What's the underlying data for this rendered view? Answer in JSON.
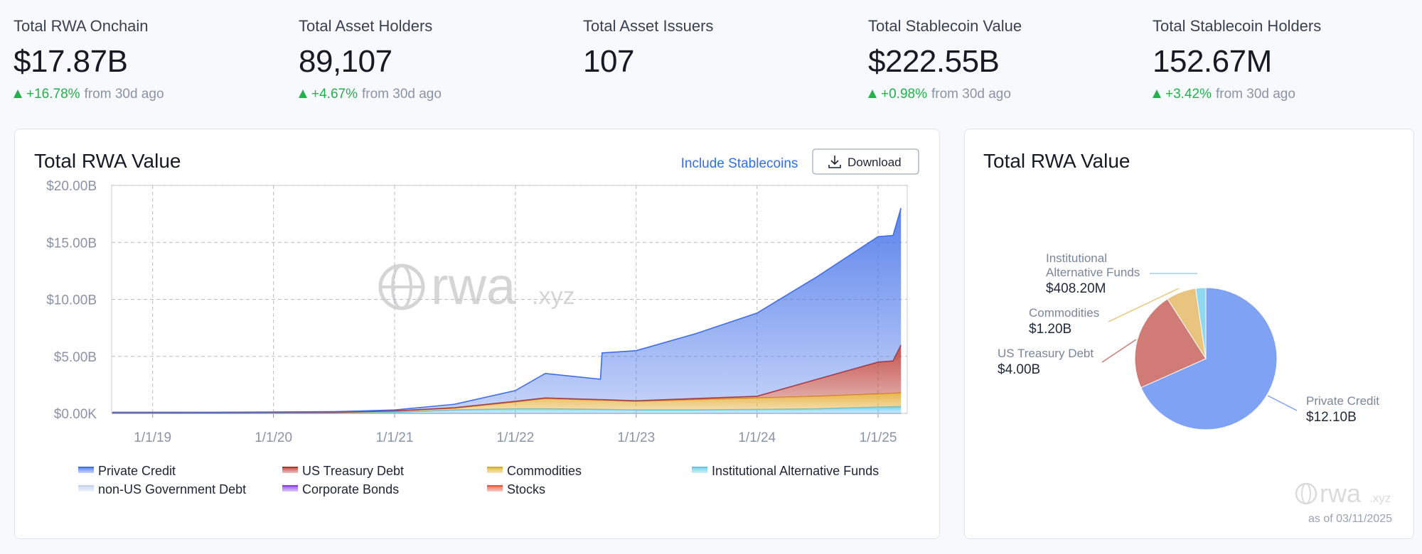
{
  "stats": [
    {
      "label": "Total RWA Onchain",
      "value": "$17.87B",
      "change": "+16.78%",
      "note": "from 30d ago"
    },
    {
      "label": "Total Asset Holders",
      "value": "89,107",
      "change": "+4.67%",
      "note": "from 30d ago"
    },
    {
      "label": "Total Asset Issuers",
      "value": "107"
    },
    {
      "label": "Total Stablecoin Value",
      "value": "$222.55B",
      "change": "+0.98%",
      "note": "from 30d ago"
    },
    {
      "label": "Total Stablecoin Holders",
      "value": "152.67M",
      "change": "+3.42%",
      "note": "from 30d ago"
    }
  ],
  "toolbar": {
    "toggle": "Include Stablecoins",
    "download": "Download"
  },
  "watermark": {
    "main": "rwa",
    "suffix": ".xyz"
  },
  "pie_footer": "as of 03/11/2025",
  "chart_data": [
    {
      "type": "stacked_area",
      "title": "Total RWA Value",
      "x": [
        "2018-09-01",
        "2019-01-01",
        "2019-07-01",
        "2020-01-01",
        "2020-07-01",
        "2021-01-01",
        "2021-07-01",
        "2022-01-01",
        "2022-04-01",
        "2022-09-15",
        "2022-09-20",
        "2023-01-01",
        "2023-07-01",
        "2024-01-01",
        "2024-07-01",
        "2025-01-01",
        "2025-02-15",
        "2025-03-11"
      ],
      "xlim": [
        "2018-08-30",
        "2025-03-30"
      ],
      "xticks": [
        {
          "value": "2019-01-01",
          "label": "1/1/19"
        },
        {
          "value": "2020-01-01",
          "label": "1/1/20"
        },
        {
          "value": "2021-01-01",
          "label": "1/1/21"
        },
        {
          "value": "2022-01-01",
          "label": "1/1/22"
        },
        {
          "value": "2023-01-01",
          "label": "1/1/23"
        },
        {
          "value": "2024-01-01",
          "label": "1/1/24"
        },
        {
          "value": "2025-01-01",
          "label": "1/1/25"
        }
      ],
      "ylim": [
        0,
        20
      ],
      "yticks": [
        {
          "value": 0,
          "label": "$0.00K"
        },
        {
          "value": 5,
          "label": "$5.00B"
        },
        {
          "value": 10,
          "label": "$10.00B"
        },
        {
          "value": 15,
          "label": "$15.00B"
        },
        {
          "value": 20,
          "label": "$20.00B"
        }
      ],
      "grid": true,
      "series": [
        {
          "name": "Private Credit",
          "color": "#3f6ee8",
          "values": [
            0.04,
            0.04,
            0.03,
            0.04,
            0.05,
            0.08,
            0.3,
            0.95,
            2.15,
            1.8,
            4.1,
            4.4,
            5.7,
            7.3,
            9.0,
            11.0,
            11.0,
            12.0
          ]
        },
        {
          "name": "US Treasury Debt",
          "color": "#b8322a",
          "values": [
            0.02,
            0.02,
            0.02,
            0.02,
            0.02,
            0.02,
            0.05,
            0.05,
            0.05,
            0.05,
            0.05,
            0.05,
            0.1,
            0.15,
            1.5,
            2.8,
            2.85,
            4.2
          ]
        },
        {
          "name": "Commodities",
          "color": "#e3a92e",
          "values": [
            0.02,
            0.02,
            0.03,
            0.03,
            0.04,
            0.1,
            0.15,
            0.6,
            0.9,
            0.8,
            0.8,
            0.75,
            0.9,
            1.0,
            1.1,
            1.15,
            1.17,
            1.2
          ]
        },
        {
          "name": "Institutional Alternative Funds",
          "color": "#5fc9e8",
          "values": [
            0.02,
            0.02,
            0.02,
            0.03,
            0.04,
            0.1,
            0.3,
            0.4,
            0.4,
            0.35,
            0.35,
            0.3,
            0.3,
            0.35,
            0.4,
            0.55,
            0.58,
            0.6
          ]
        },
        {
          "name": "non-US Government Debt",
          "color": "#c3d3ee",
          "values": [
            0,
            0,
            0,
            0,
            0,
            0,
            0,
            0,
            0,
            0,
            0,
            0,
            0,
            0,
            0,
            0,
            0,
            0
          ]
        },
        {
          "name": "Corporate Bonds",
          "color": "#8b3ee0",
          "values": [
            0,
            0,
            0,
            0,
            0,
            0,
            0,
            0,
            0,
            0,
            0,
            0,
            0,
            0,
            0,
            0,
            0,
            0
          ]
        },
        {
          "name": "Stocks",
          "color": "#e8573a",
          "values": [
            0,
            0,
            0,
            0,
            0,
            0,
            0,
            0,
            0,
            0,
            0,
            0,
            0,
            0,
            0,
            0,
            0,
            0
          ]
        }
      ]
    },
    {
      "type": "pie",
      "title": "Total RWA Value",
      "categories": [
        "Private Credit",
        "US Treasury Debt",
        "Commodities",
        "Institutional Alternative Funds"
      ],
      "values": [
        12.1,
        4.0,
        1.2,
        0.4082
      ],
      "value_labels": [
        "$12.10B",
        "$4.00B",
        "$1.20B",
        "$408.20M"
      ],
      "colors": [
        "#7fa2f5",
        "#d07b76",
        "#e8c47e",
        "#8fd8ef"
      ]
    }
  ]
}
